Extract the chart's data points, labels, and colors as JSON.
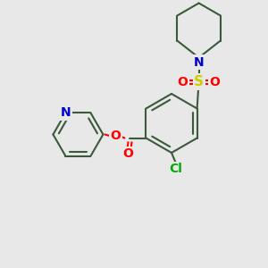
{
  "bg_color": "#e8e8e8",
  "bond_color": "#3a5a3a",
  "bond_lw": 1.5,
  "atom_colors": {
    "N": "#0000CC",
    "O": "#FF0000",
    "S": "#cccc00",
    "Cl": "#00aa00",
    "C": "#3a5a3a"
  },
  "font_size": 9,
  "label_fontsize": 9
}
